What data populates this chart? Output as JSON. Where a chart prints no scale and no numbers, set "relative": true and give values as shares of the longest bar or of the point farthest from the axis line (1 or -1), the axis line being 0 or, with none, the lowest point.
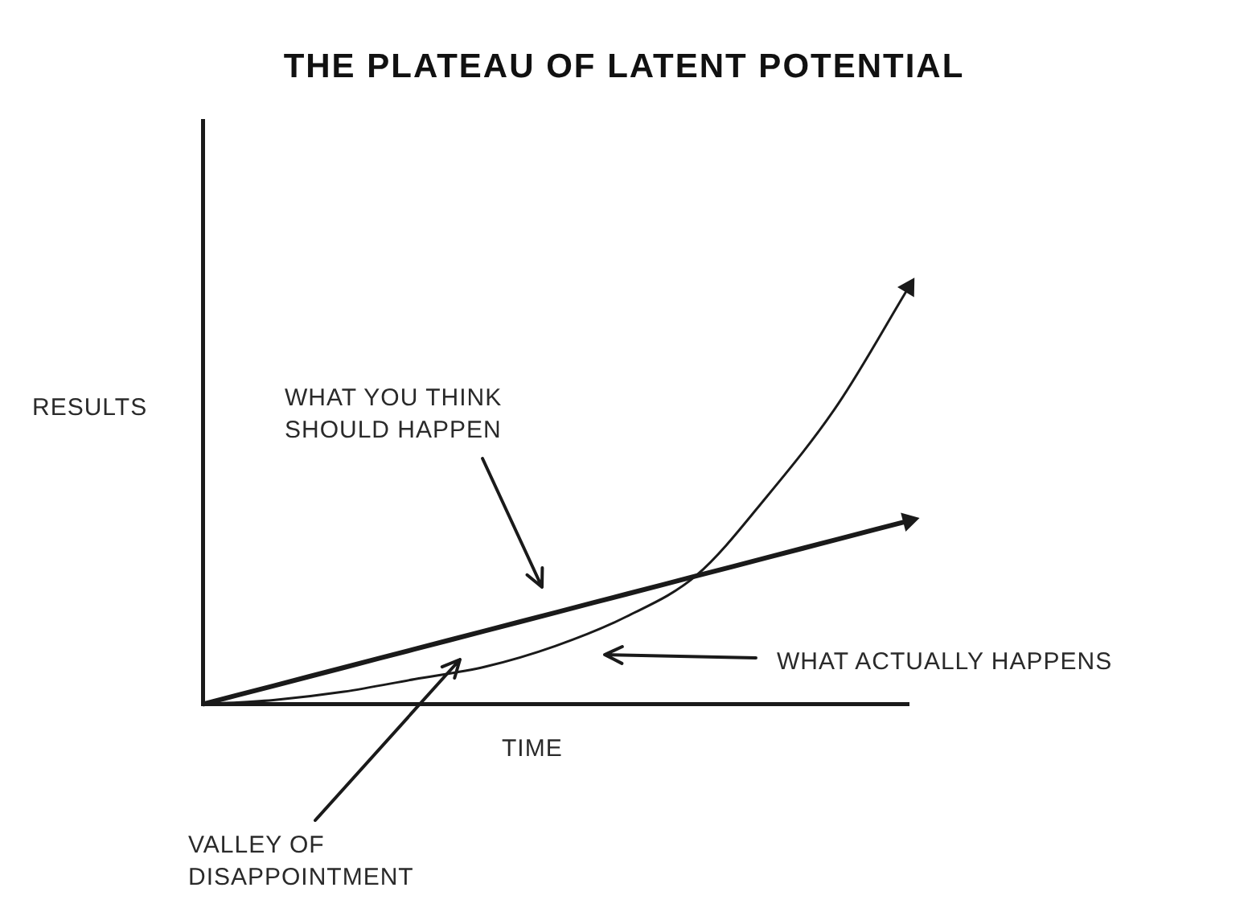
{
  "chart_data": {
    "type": "line",
    "title": "THE PLATEAU OF LATENT POTENTIAL",
    "xlabel": "TIME",
    "ylabel": "RESULTS",
    "relative": true,
    "grid": false,
    "legend": false,
    "marker": "none",
    "line_style": "solid",
    "categories": [
      null,
      null,
      null,
      null,
      null,
      null,
      null,
      null,
      null,
      null,
      null
    ],
    "series": [
      {
        "color": "#1a1a1a",
        "values": [
          0,
          0.044,
          0.088,
          0.132,
          0.176,
          0.22,
          0.264,
          0.308,
          0.352,
          0.396,
          0.44
        ]
      },
      {
        "color": "#1a1a1a",
        "values": [
          0,
          0.01,
          0.03,
          0.06,
          0.09,
          0.14,
          0.21,
          0.31,
          0.5,
          0.72,
          1
        ]
      }
    ],
    "annotations": [
      "WHAT YOU THINK\nSHOULD HAPPEN",
      "WHAT ACTUALLY HAPPENS",
      "VALLEY OF\nDISAPPOINTMENT"
    ]
  }
}
